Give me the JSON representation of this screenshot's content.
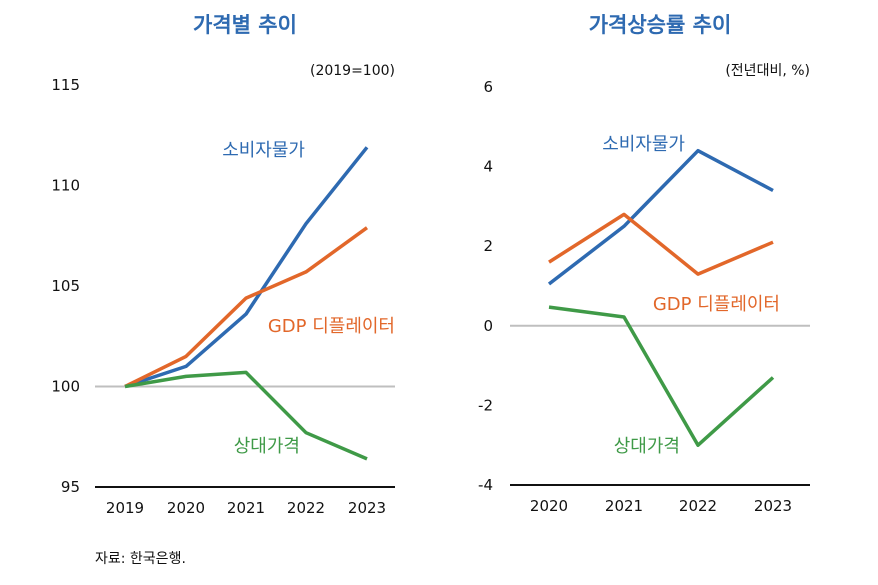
{
  "source": "자료: 한국은행.",
  "colors": {
    "cpi": "#2e6ab1",
    "gdp": "#e2672a",
    "rel": "#3f9a47",
    "ref_line": "#bfbfbf",
    "title": "#2e6ab1"
  },
  "chart_data": [
    {
      "type": "line",
      "title": "가격별 추이",
      "unit": "(2019=100)",
      "categories": [
        "2019",
        "2020",
        "2021",
        "2022",
        "2023"
      ],
      "ylim": [
        95,
        115
      ],
      "yticks": [
        "95",
        "100",
        "105",
        "110",
        "115"
      ],
      "reference_line": 100,
      "grid": false,
      "series": [
        {
          "name": "소비자물가",
          "key": "cpi",
          "values": [
            100,
            101.0,
            103.6,
            108.1,
            111.9
          ]
        },
        {
          "name": "GDP 디플레이터",
          "key": "gdp",
          "values": [
            100,
            101.5,
            104.4,
            105.7,
            107.9
          ]
        },
        {
          "name": "상대가격",
          "key": "rel",
          "values": [
            100,
            100.5,
            100.7,
            97.7,
            96.4
          ]
        }
      ]
    },
    {
      "type": "line",
      "title": "가격상승률 추이",
      "unit": "(전년대비, %)",
      "categories": [
        "2020",
        "2021",
        "2022",
        "2023"
      ],
      "ylim": [
        -4,
        6
      ],
      "yticks": [
        "-4",
        "-2",
        "0",
        "2",
        "4",
        "6"
      ],
      "reference_line": 0,
      "grid": false,
      "series": [
        {
          "name": "소비자물가",
          "key": "cpi",
          "values": [
            1.05,
            2.5,
            4.4,
            3.4
          ]
        },
        {
          "name": "GDP 디플레이터",
          "key": "gdp",
          "values": [
            1.6,
            2.8,
            1.3,
            2.1
          ]
        },
        {
          "name": "상대가격",
          "key": "rel",
          "values": [
            0.47,
            0.22,
            -3.0,
            -1.3
          ]
        }
      ]
    }
  ]
}
